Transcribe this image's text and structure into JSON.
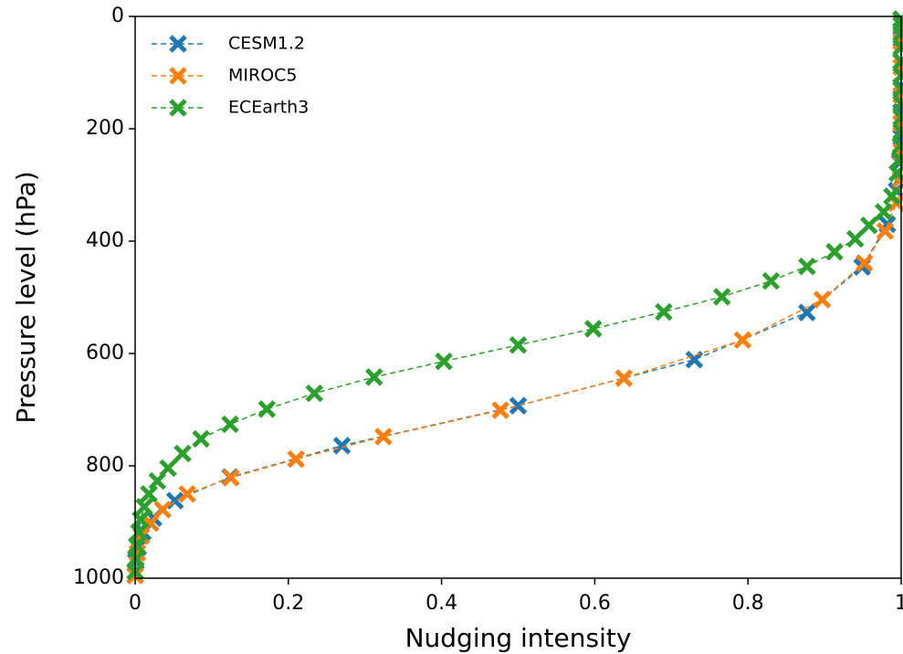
{
  "chart_data": {
    "type": "line",
    "xlabel": "Nudging intensity",
    "ylabel": "Pressure level (hPa)",
    "xlim": [
      0,
      1
    ],
    "xticks": [
      0,
      0.2,
      0.4,
      0.6,
      0.8,
      1
    ],
    "ylim": [
      1000,
      0
    ],
    "yticks": [
      0,
      200,
      400,
      600,
      800,
      1000
    ],
    "legend": "upper left",
    "line_style": "dashed",
    "marker": "x",
    "series": [
      {
        "name": "CESM1.2",
        "color": "#1f77b4",
        "x": [
          0.0,
          0.001,
          0.004,
          0.01,
          0.024,
          0.052,
          0.124,
          0.27,
          0.5,
          0.73,
          0.877,
          0.949,
          0.982,
          0.994,
          0.998,
          1.0,
          1.0,
          1.0,
          1.0,
          1.0,
          1.0
        ],
        "values": [
          995,
          970,
          945,
          918,
          893,
          862,
          820,
          764,
          693,
          611,
          527,
          446,
          370,
          310,
          260,
          215,
          170,
          125,
          80,
          40,
          5
        ]
      },
      {
        "name": "MIROC5",
        "color": "#ff7f0e",
        "x": [
          0.0,
          0.003,
          0.008,
          0.02,
          0.036,
          0.068,
          0.125,
          0.21,
          0.324,
          0.477,
          0.638,
          0.793,
          0.897,
          0.952,
          0.979,
          0.994,
          0.999,
          1.0,
          1.0,
          1.0,
          1.0,
          1.0,
          1.0
        ],
        "values": [
          995,
          955,
          925,
          902,
          878,
          850,
          821,
          788,
          748,
          701,
          644,
          576,
          504,
          439,
          382,
          332,
          290,
          240,
          190,
          140,
          90,
          45,
          10
        ]
      },
      {
        "name": "ECEarth3",
        "color": "#2ca02c",
        "x": [
          0.0,
          0.001,
          0.002,
          0.005,
          0.007,
          0.012,
          0.018,
          0.029,
          0.043,
          0.062,
          0.086,
          0.124,
          0.172,
          0.234,
          0.312,
          0.403,
          0.5,
          0.598,
          0.69,
          0.766,
          0.83,
          0.877,
          0.913,
          0.94,
          0.958,
          0.977,
          0.988,
          0.995,
          0.998,
          0.999,
          1.0,
          1.0,
          1.0,
          1.0,
          1.0,
          1.0,
          1.0,
          1.0,
          1.0,
          1.0
        ],
        "values": [
          988,
          965,
          942,
          918,
          896,
          873,
          850,
          827,
          804,
          778,
          752,
          726,
          699,
          671,
          642,
          614,
          585,
          556,
          526,
          499,
          471,
          445,
          419,
          396,
          372,
          348,
          320,
          279,
          255,
          230,
          205,
          180,
          155,
          130,
          105,
          80,
          55,
          30,
          15,
          5
        ]
      }
    ]
  }
}
